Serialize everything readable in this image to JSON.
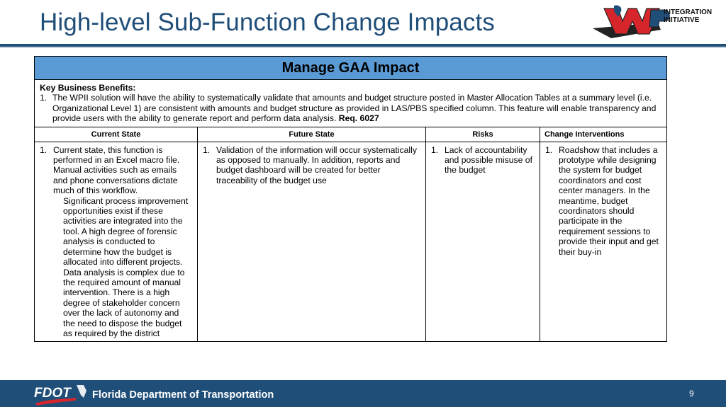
{
  "slide": {
    "title": "High-level Sub-Function Change Impacts",
    "page_number": "9"
  },
  "logo": {
    "letters": "WP",
    "line1": "INTEGRATION",
    "line2": "INITIATIVE"
  },
  "table": {
    "header": "Manage GAA Impact",
    "benefits_title": "Key Business Benefits:",
    "benefit_number": "1.",
    "benefit_text": "The WPII solution will have the ability to systematically validate that amounts and budget structure posted in Master Allocation Tables at a summary level (i.e. Organizational Level 1) are consistent with amounts and budget structure as provided in LAS/PBS specified column. This feature will enable transparency and provide users with the ability to generate report and perform data analysis.",
    "benefit_req": "Req. 6027",
    "columns": [
      "Current State",
      "Future State",
      "Risks",
      "Change Interventions"
    ],
    "current_state": {
      "number": "1.",
      "text": "Current state, this function is performed in an Excel macro file. Manual activities such as emails and phone conversations dictate much of this workflow.",
      "para": "Significant process improvement opportunities exist if these activities are integrated into the tool. A high degree of forensic analysis is conducted to determine how the budget is allocated into different projects. Data analysis is complex due to the required amount of manual intervention. There is a high degree of stakeholder concern over the lack of autonomy and the need to dispose the budget as required by the district"
    },
    "future_state": {
      "number": "1.",
      "text": "Validation of the information will occur systematically as opposed to manually. In addition, reports and budget dashboard will be created for better traceability of the budget use"
    },
    "risks": {
      "number": "1.",
      "text": "Lack of accountability and possible misuse of the budget"
    },
    "change_interventions": {
      "number": "1.",
      "text": "Roadshow that includes a prototype while designing the system for budget coordinators and cost center managers. In the meantime, budget coordinators should participate in the requirement sessions to provide their input and get their buy-in"
    }
  },
  "footer": {
    "logo_text": "FDOT",
    "organization": "Florida Department of Transportation"
  },
  "colors": {
    "title_blue": "#1f4e79",
    "header_fill": "#5b9bd5",
    "footer_bar": "#1f4e79",
    "logo_red": "#d7262b"
  }
}
